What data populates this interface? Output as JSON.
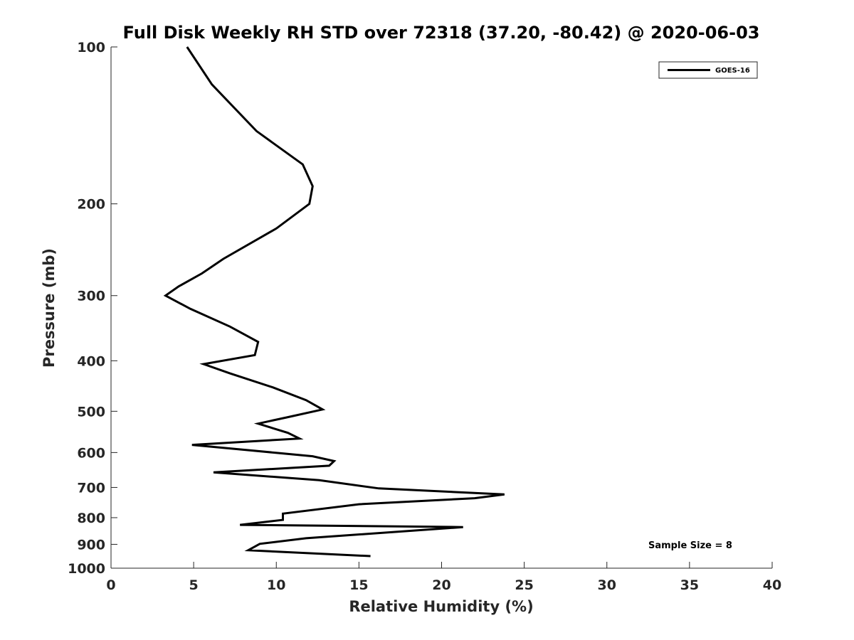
{
  "chart_data": {
    "type": "line",
    "title": "Full Disk Weekly RH STD over 72318 (37.20, -80.42) @ 2020-06-03",
    "xlabel": "Relative Humidity (%)",
    "ylabel": "Pressure (mb)",
    "xlim": [
      0,
      40
    ],
    "ylim": [
      100,
      1000
    ],
    "y_scale": "log",
    "y_reversed": true,
    "x_ticks": [
      "0",
      "5",
      "10",
      "15",
      "20",
      "25",
      "30",
      "35",
      "40"
    ],
    "y_ticks": [
      "100",
      "200",
      "300",
      "400",
      "500",
      "600",
      "700",
      "800",
      "900",
      "1000"
    ],
    "legend": {
      "placement": "top-right",
      "entries": [
        "GOES-16"
      ]
    },
    "annotation": "Sample Size = 8",
    "grid": false,
    "series": [
      {
        "name": "GOES-16",
        "color": "#000000",
        "x": [
          4.6,
          6.1,
          8.8,
          11.6,
          12.2,
          12.0,
          10.0,
          6.8,
          5.5,
          4.1,
          3.3,
          4.8,
          7.2,
          8.9,
          8.7,
          5.6,
          7.2,
          9.8,
          11.8,
          12.8,
          10.6,
          8.9,
          10.7,
          11.4,
          4.9,
          12.2,
          13.5,
          13.2,
          6.2,
          12.6,
          16.2,
          23.8,
          22.0,
          15.0,
          10.4,
          10.4,
          7.8,
          21.3,
          11.8,
          9.0,
          8.3,
          15.7
        ],
        "y": [
          100,
          118,
          145,
          168,
          185,
          200,
          223,
          255,
          272,
          288,
          300,
          318,
          344,
          368,
          390,
          406,
          423,
          450,
          476,
          496,
          514,
          528,
          550,
          564,
          580,
          610,
          623,
          636,
          655,
          678,
          703,
          722,
          734,
          754,
          786,
          808,
          826,
          834,
          876,
          898,
          924,
          948
        ]
      }
    ]
  }
}
